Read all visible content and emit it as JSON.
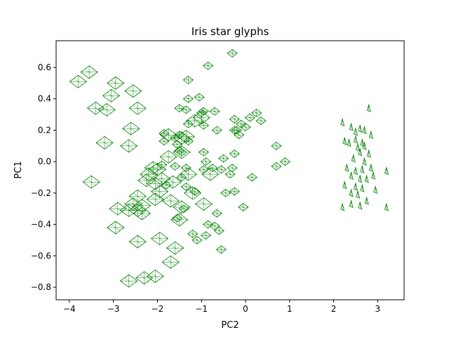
{
  "chart_data": {
    "type": "scatter",
    "title": "Iris star glyphs",
    "xlabel": "PC2",
    "ylabel": "PC1",
    "xlim": [
      -4.3,
      3.6
    ],
    "ylim": [
      -0.88,
      0.77
    ],
    "grid": false,
    "legend": "none",
    "glyph_color": "#008000",
    "xticks": [
      -4,
      -3,
      -2,
      -1,
      0,
      1,
      2,
      3
    ],
    "yticks": [
      -0.8,
      -0.6,
      -0.4,
      -0.2,
      0.0,
      0.2,
      0.4,
      0.6
    ],
    "ytick_labels": [
      "−0.8",
      "−0.6",
      "−0.4",
      "−0.2",
      "0.0",
      "0.2",
      "0.4",
      "0.6"
    ],
    "xtick_labels": [
      "−4",
      "−3",
      "−2",
      "−1",
      "0",
      "1",
      "2",
      "3"
    ],
    "clusters": [
      {
        "name": "",
        "glyph": "small-triangle",
        "points": [
          [
            2.2,
            0.25
          ],
          [
            2.4,
            0.22
          ],
          [
            2.5,
            0.19
          ],
          [
            2.6,
            0.21
          ],
          [
            2.7,
            0.2
          ],
          [
            2.8,
            0.34
          ],
          [
            2.25,
            0.13
          ],
          [
            2.35,
            0.12
          ],
          [
            2.5,
            0.14
          ],
          [
            2.65,
            0.12
          ],
          [
            2.85,
            0.17
          ],
          [
            2.55,
            0.09
          ],
          [
            2.7,
            0.1
          ],
          [
            2.6,
            0.06
          ],
          [
            2.8,
            0.05
          ],
          [
            2.45,
            0.02
          ],
          [
            2.7,
            0.0
          ],
          [
            2.3,
            -0.04
          ],
          [
            2.5,
            -0.06
          ],
          [
            2.65,
            -0.05
          ],
          [
            2.85,
            -0.04
          ],
          [
            3.2,
            -0.06
          ],
          [
            2.4,
            -0.09
          ],
          [
            2.6,
            -0.11
          ],
          [
            2.75,
            -0.11
          ],
          [
            2.9,
            -0.09
          ],
          [
            2.25,
            -0.15
          ],
          [
            2.5,
            -0.16
          ],
          [
            2.65,
            -0.17
          ],
          [
            2.95,
            -0.18
          ],
          [
            2.4,
            -0.2
          ],
          [
            2.55,
            -0.21
          ],
          [
            2.75,
            -0.25
          ],
          [
            2.2,
            -0.29
          ],
          [
            2.4,
            -0.27
          ],
          [
            2.6,
            -0.28
          ],
          [
            3.2,
            -0.29
          ]
        ]
      },
      {
        "name": "",
        "glyph": "medium-diamond",
        "points": [
          [
            -0.3,
            0.69
          ],
          [
            -0.85,
            0.61
          ],
          [
            -1.3,
            0.52
          ],
          [
            -1.05,
            0.41
          ],
          [
            -1.3,
            0.4
          ],
          [
            -1.5,
            0.34
          ],
          [
            -1.35,
            0.33
          ],
          [
            -1.0,
            0.31
          ],
          [
            -0.95,
            0.32
          ],
          [
            -0.7,
            0.32
          ],
          [
            -1.3,
            0.24
          ],
          [
            -0.95,
            0.23
          ],
          [
            -0.65,
            0.2
          ],
          [
            -0.25,
            0.27
          ],
          [
            -0.1,
            0.24
          ],
          [
            0.1,
            0.28
          ],
          [
            0.25,
            0.31
          ],
          [
            0.35,
            0.26
          ],
          [
            0.0,
            0.22
          ],
          [
            -0.2,
            0.2
          ],
          [
            -1.85,
            0.18
          ],
          [
            -1.5,
            0.17
          ],
          [
            -1.6,
            0.15
          ],
          [
            -1.3,
            0.13
          ],
          [
            -1.85,
            0.13
          ],
          [
            -1.55,
            0.11
          ],
          [
            -1.5,
            0.07
          ],
          [
            -0.15,
            0.17
          ],
          [
            -0.25,
            0.2
          ],
          [
            -1.45,
            0.06
          ],
          [
            -0.95,
            0.06
          ],
          [
            -0.25,
            0.05
          ],
          [
            0.7,
            0.1
          ],
          [
            -1.35,
            -0.04
          ],
          [
            -0.9,
            0.0
          ],
          [
            -0.5,
            0.02
          ],
          [
            -1.45,
            -0.1
          ],
          [
            -0.95,
            -0.05
          ],
          [
            -0.75,
            -0.04
          ],
          [
            -0.3,
            -0.04
          ],
          [
            -0.55,
            -0.05
          ],
          [
            -0.35,
            -0.08
          ],
          [
            0.15,
            -0.1
          ],
          [
            0.7,
            -0.03
          ],
          [
            0.9,
            0.0
          ],
          [
            -1.9,
            -0.02
          ],
          [
            -1.6,
            -0.03
          ],
          [
            -0.45,
            -0.2
          ],
          [
            -0.25,
            -0.19
          ],
          [
            -1.35,
            -0.16
          ],
          [
            -1.8,
            -0.15
          ],
          [
            -1.15,
            -0.19
          ],
          [
            -0.05,
            -0.29
          ],
          [
            -0.65,
            -0.33
          ],
          [
            -1.55,
            -0.36
          ],
          [
            -1.1,
            -0.5
          ],
          [
            -0.85,
            -0.4
          ],
          [
            -0.7,
            -0.41
          ],
          [
            -1.4,
            -0.3
          ],
          [
            -0.6,
            -0.44
          ],
          [
            -0.55,
            -0.56
          ],
          [
            -1.2,
            -0.46
          ],
          [
            -0.9,
            -0.47
          ]
        ]
      },
      {
        "name": "",
        "glyph": "large-diamond",
        "points": [
          [
            -3.8,
            0.51
          ],
          [
            -3.55,
            0.57
          ],
          [
            -2.95,
            0.5
          ],
          [
            -3.05,
            0.42
          ],
          [
            -2.55,
            0.45
          ],
          [
            -2.45,
            0.34
          ],
          [
            -3.4,
            0.34
          ],
          [
            -3.15,
            0.33
          ],
          [
            -2.6,
            0.21
          ],
          [
            -3.2,
            0.12
          ],
          [
            -2.65,
            0.1
          ],
          [
            -1.75,
            0.17
          ],
          [
            -1.45,
            0.15
          ],
          [
            -1.75,
            0.03
          ],
          [
            -1.45,
            0.06
          ],
          [
            -3.5,
            -0.13
          ],
          [
            -2.1,
            -0.04
          ],
          [
            -2.0,
            -0.05
          ],
          [
            -2.2,
            -0.08
          ],
          [
            -1.9,
            -0.11
          ],
          [
            -2.05,
            -0.14
          ],
          [
            -1.95,
            -0.19
          ],
          [
            -1.65,
            -0.13
          ],
          [
            -2.25,
            -0.12
          ],
          [
            -2.45,
            -0.22
          ],
          [
            -2.05,
            -0.24
          ],
          [
            -1.7,
            -0.25
          ],
          [
            -2.55,
            -0.27
          ],
          [
            -2.35,
            -0.28
          ],
          [
            -2.45,
            -0.31
          ],
          [
            -2.35,
            -0.33
          ],
          [
            -1.45,
            -0.29
          ],
          [
            -1.5,
            -0.37
          ],
          [
            -2.9,
            -0.3
          ],
          [
            -2.65,
            -0.31
          ],
          [
            -2.95,
            -0.42
          ],
          [
            -2.45,
            -0.51
          ],
          [
            -1.95,
            -0.49
          ],
          [
            -1.6,
            -0.55
          ],
          [
            -2.3,
            -0.74
          ],
          [
            -2.05,
            -0.73
          ],
          [
            -2.65,
            -0.76
          ],
          [
            -1.7,
            -0.64
          ],
          [
            -0.95,
            -0.27
          ],
          [
            -1.2,
            -0.2
          ],
          [
            -1.3,
            -0.08
          ],
          [
            -0.8,
            -0.08
          ],
          [
            -1.15,
            0.26
          ],
          [
            -1.35,
            0.16
          ],
          [
            -1.0,
            0.28
          ]
        ]
      }
    ]
  }
}
